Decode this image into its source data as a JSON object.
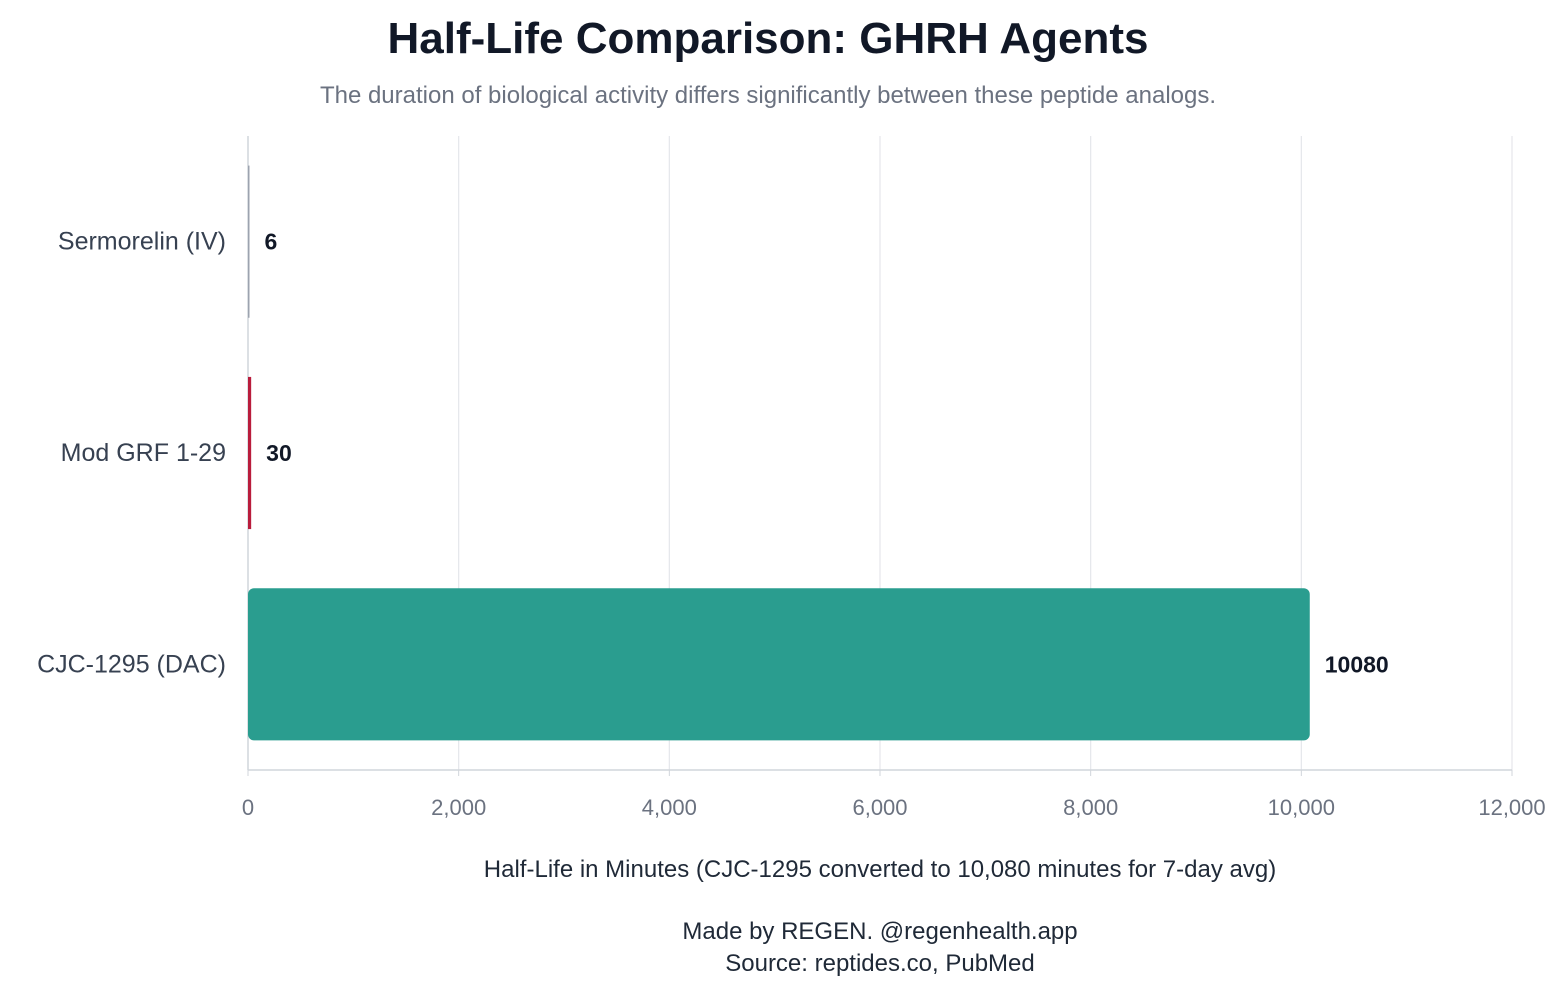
{
  "chart_data": {
    "type": "bar",
    "orientation": "horizontal",
    "title": "Half-Life Comparison: GHRH Agents",
    "subtitle": "The duration of biological activity differs significantly between these peptide analogs.",
    "categories": [
      "Sermorelin (IV)",
      "Mod GRF 1-29",
      "CJC-1295 (DAC)"
    ],
    "values": [
      6,
      30,
      10080
    ],
    "value_labels": [
      "6",
      "30",
      "10080"
    ],
    "colors": [
      "#9ca3af",
      "#b91c3c",
      "#2a9d8f"
    ],
    "xlabel": "Half-Life in Minutes (CJC-1295 converted to 10,080 minutes for 7-day avg)",
    "xlim": [
      0,
      12000
    ],
    "x_ticks": [
      0,
      2000,
      4000,
      6000,
      8000,
      10000,
      12000
    ],
    "x_tick_labels": [
      "0",
      "2,000",
      "4,000",
      "6,000",
      "8,000",
      "10,000",
      "12,000"
    ],
    "grid": "vertical"
  },
  "footer": {
    "credit": "Made by REGEN. @regenhealth.app",
    "source": "Source: reptides.co, PubMed"
  }
}
